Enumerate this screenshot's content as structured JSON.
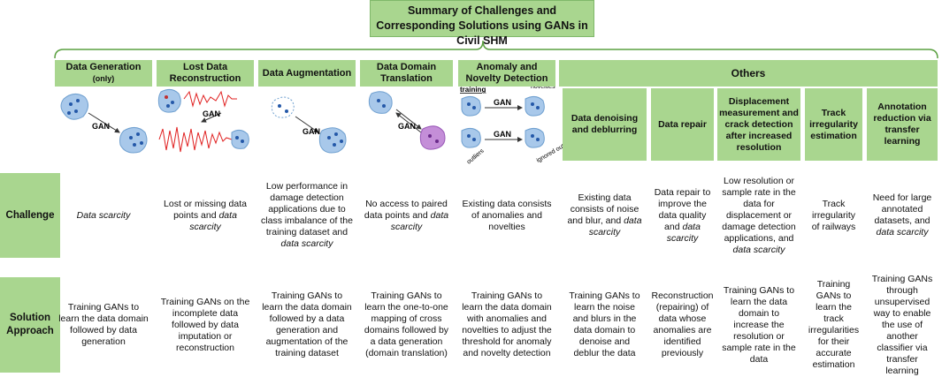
{
  "title": "Summary of Challenges and Corresponding Solutions using GANs in Civil SHM",
  "others": "Others",
  "row_labels": [
    "Challenge",
    "Solution Approach"
  ],
  "columns": [
    {
      "header": "Data Generation",
      "note": "(only)",
      "labels": [
        "GAN"
      ],
      "challenge": {
        "emphasis": "Data scarcity"
      },
      "solution": "Training GANs to learn the data domain followed by data generation"
    },
    {
      "header": "Lost Data Reconstruction",
      "labels": [
        "GAN"
      ],
      "challenge": {
        "text": "Lost or missing data points and",
        "emphasis": "data scarcity"
      },
      "solution": "Training GANs on the incomplete data followed by data imputation or reconstruction"
    },
    {
      "header": "Data Augmentation",
      "labels": [
        "GAN"
      ],
      "challenge": {
        "text": "Low performance in damage detection applications due to class imbalance of the training dataset and",
        "emphasis": "data scarcity"
      },
      "solution": "Training GANs to learn the data domain followed by a data generation and augmentation of the training dataset"
    },
    {
      "header": "Data Domain Translation",
      "labels": [
        "GAN"
      ],
      "challenge": {
        "text": "No access to paired data points and",
        "emphasis": "data scarcity"
      },
      "solution": "Training GANs to learn the one-to-one mapping of cross domains followed by a data generation (domain translation)"
    },
    {
      "header": "Anomaly and Novelty Detection",
      "labels": [
        "training",
        "GAN",
        "novelties",
        "GAN",
        "outliers",
        "ignored outliers"
      ],
      "challenge": {
        "text": "Existing data consists of anomalies and novelties"
      },
      "solution": "Training GANs to learn the data domain with anomalies and novelties to adjust the threshold for anomaly and novelty detection"
    },
    {
      "header": "Data denoising and deblurring",
      "challenge": {
        "text": "Existing data consists of noise and blur, and",
        "emphasis": "data scarcity"
      },
      "solution": "Training GANs to learn the noise and blurs in the data domain to denoise and deblur the data"
    },
    {
      "header": "Data repair",
      "challenge": {
        "text": "Data repair to improve the data quality and",
        "emphasis": "data scarcity"
      },
      "solution": "Reconstruction (repairing) of data whose anomalies are identified previously"
    },
    {
      "header": "Displacement measurement and crack detection after increased resolution",
      "challenge": {
        "text": "Low resolution or sample rate in the data for displacement or damage detection applications, and",
        "emphasis": "data scarcity"
      },
      "solution": "Training GANs to learn the data domain to increase the resolution or sample rate in the data"
    },
    {
      "header": "Track irregularity estimation",
      "challenge": {
        "text": "Track irregularity of railways"
      },
      "solution": "Training GANs to learn the track irregularities for their accurate estimation"
    },
    {
      "header": "Annotation reduction via transfer learning",
      "challenge": {
        "text": "Need for large annotated datasets, and",
        "emphasis": "data scarcity"
      },
      "solution": "Training GANs through unsupervised way to enable the use of another classifier via transfer learning"
    }
  ]
}
